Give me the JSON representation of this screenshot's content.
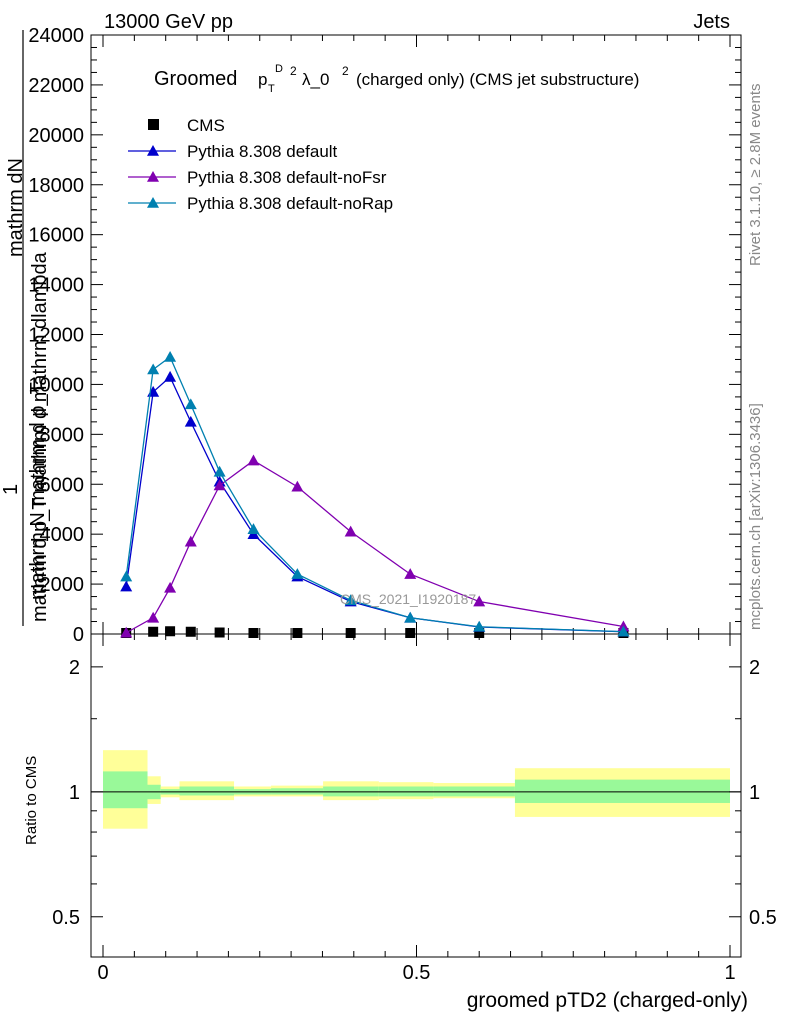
{
  "header": {
    "left": "13000 GeV pp",
    "right": "Jets"
  },
  "side": {
    "rivet": "Rivet 3.1.10, ≥ 2.8M events",
    "mcplots": "mcplots.cern.ch [arXiv:1306.3436]"
  },
  "plot": {
    "title_main": "Groomed",
    "title_p": "p",
    "title_sup_d": "D",
    "title_sub_t": "T",
    "title_sup_2": "2",
    "title_lambda": "λ_0",
    "title_rest": "(charged only) (CMS jet substructure)",
    "watermark": "CMS_2021_I1920187",
    "ylabel_line1": "mathrm dN",
    "ylabel_line2": "mathrm d p_T mathrm d mathrm dlambda",
    "ylabel_one": "1",
    "ylabel_line3": "mathrm N mathrm d p_T",
    "xlabel": "groomed pTD2 (charged-only)",
    "ratio_ylabel": "Ratio to CMS"
  },
  "legend": [
    {
      "name": "CMS",
      "color": "#000000",
      "marker": "square"
    },
    {
      "name": "Pythia 8.308 default",
      "color": "#0000cc",
      "marker": "triangle"
    },
    {
      "name": "Pythia 8.308 default-noFsr",
      "color": "#8000b0",
      "marker": "triangle"
    },
    {
      "name": "Pythia 8.308 default-noRap",
      "color": "#0080b0",
      "marker": "triangle"
    }
  ],
  "chart_data": [
    {
      "type": "line",
      "panel": "main",
      "xlim": [
        0,
        1
      ],
      "ylim": [
        0,
        24000
      ],
      "yticks": [
        0,
        2000,
        4000,
        6000,
        8000,
        10000,
        12000,
        14000,
        16000,
        18000,
        20000,
        22000,
        24000
      ],
      "ytick_labels": [
        "0",
        "2000",
        "4000",
        "6000",
        "8000",
        "10000",
        "12000",
        "14000",
        "16000",
        "18000",
        "20000",
        "22000",
        "24000"
      ],
      "xticks": [
        0,
        0.5,
        1
      ],
      "xtick_labels": [
        "0",
        "0.5",
        "1"
      ],
      "series": [
        {
          "name": "CMS",
          "color": "#000000",
          "x": [
            0.037,
            0.08,
            0.107,
            0.14,
            0.186,
            0.24,
            0.31,
            0.395,
            0.49,
            0.6,
            0.83
          ],
          "y": [
            30,
            90,
            110,
            90,
            60,
            40,
            30,
            20,
            10,
            5,
            2
          ]
        },
        {
          "name": "Pythia 8.308 default",
          "color": "#0000cc",
          "x": [
            0.037,
            0.08,
            0.107,
            0.14,
            0.186,
            0.24,
            0.31,
            0.395,
            0.49,
            0.6,
            0.83
          ],
          "y": [
            1900,
            9700,
            10300,
            8500,
            6100,
            4000,
            2300,
            1300,
            650,
            280,
            90
          ]
        },
        {
          "name": "Pythia 8.308 default-noFsr",
          "color": "#8000b0",
          "x": [
            0.037,
            0.08,
            0.107,
            0.14,
            0.186,
            0.24,
            0.31,
            0.395,
            0.49,
            0.6,
            0.83
          ],
          "y": [
            50,
            650,
            1850,
            3700,
            5950,
            6950,
            5900,
            4100,
            2400,
            1300,
            300
          ]
        },
        {
          "name": "Pythia 8.308 default-noRap",
          "color": "#0080b0",
          "x": [
            0.037,
            0.08,
            0.107,
            0.14,
            0.186,
            0.24,
            0.31,
            0.395,
            0.49,
            0.6,
            0.83
          ],
          "y": [
            2300,
            10600,
            11100,
            9200,
            6500,
            4200,
            2400,
            1350,
            650,
            290,
            95
          ]
        }
      ]
    },
    {
      "type": "area",
      "panel": "ratio",
      "xlim": [
        0,
        1
      ],
      "ylim": [
        0.4,
        2.4
      ],
      "log_y": true,
      "yticks": [
        0.5,
        1,
        2
      ],
      "ytick_labels": [
        "0.5",
        "1",
        "2"
      ],
      "reference_line": 1,
      "bins": [
        0,
        0.071,
        0.092,
        0.122,
        0.209,
        0.268,
        0.351,
        0.44,
        0.527,
        0.657,
        1.0
      ],
      "stat_band": {
        "name": "stat",
        "color": "#99f999",
        "lo": [
          0.913,
          0.96,
          0.985,
          0.98,
          0.985,
          0.985,
          0.975,
          0.975,
          0.975,
          0.94
        ],
        "hi": [
          1.12,
          1.04,
          1.015,
          1.03,
          1.015,
          1.02,
          1.03,
          1.03,
          1.03,
          1.07
        ]
      },
      "syst_band": {
        "name": "stat+syst",
        "color": "#ffff99",
        "lo": [
          0.815,
          0.935,
          0.97,
          0.955,
          0.975,
          0.975,
          0.955,
          0.96,
          0.965,
          0.87
        ],
        "hi": [
          1.26,
          1.09,
          1.03,
          1.06,
          1.03,
          1.035,
          1.06,
          1.055,
          1.05,
          1.14
        ]
      }
    }
  ]
}
